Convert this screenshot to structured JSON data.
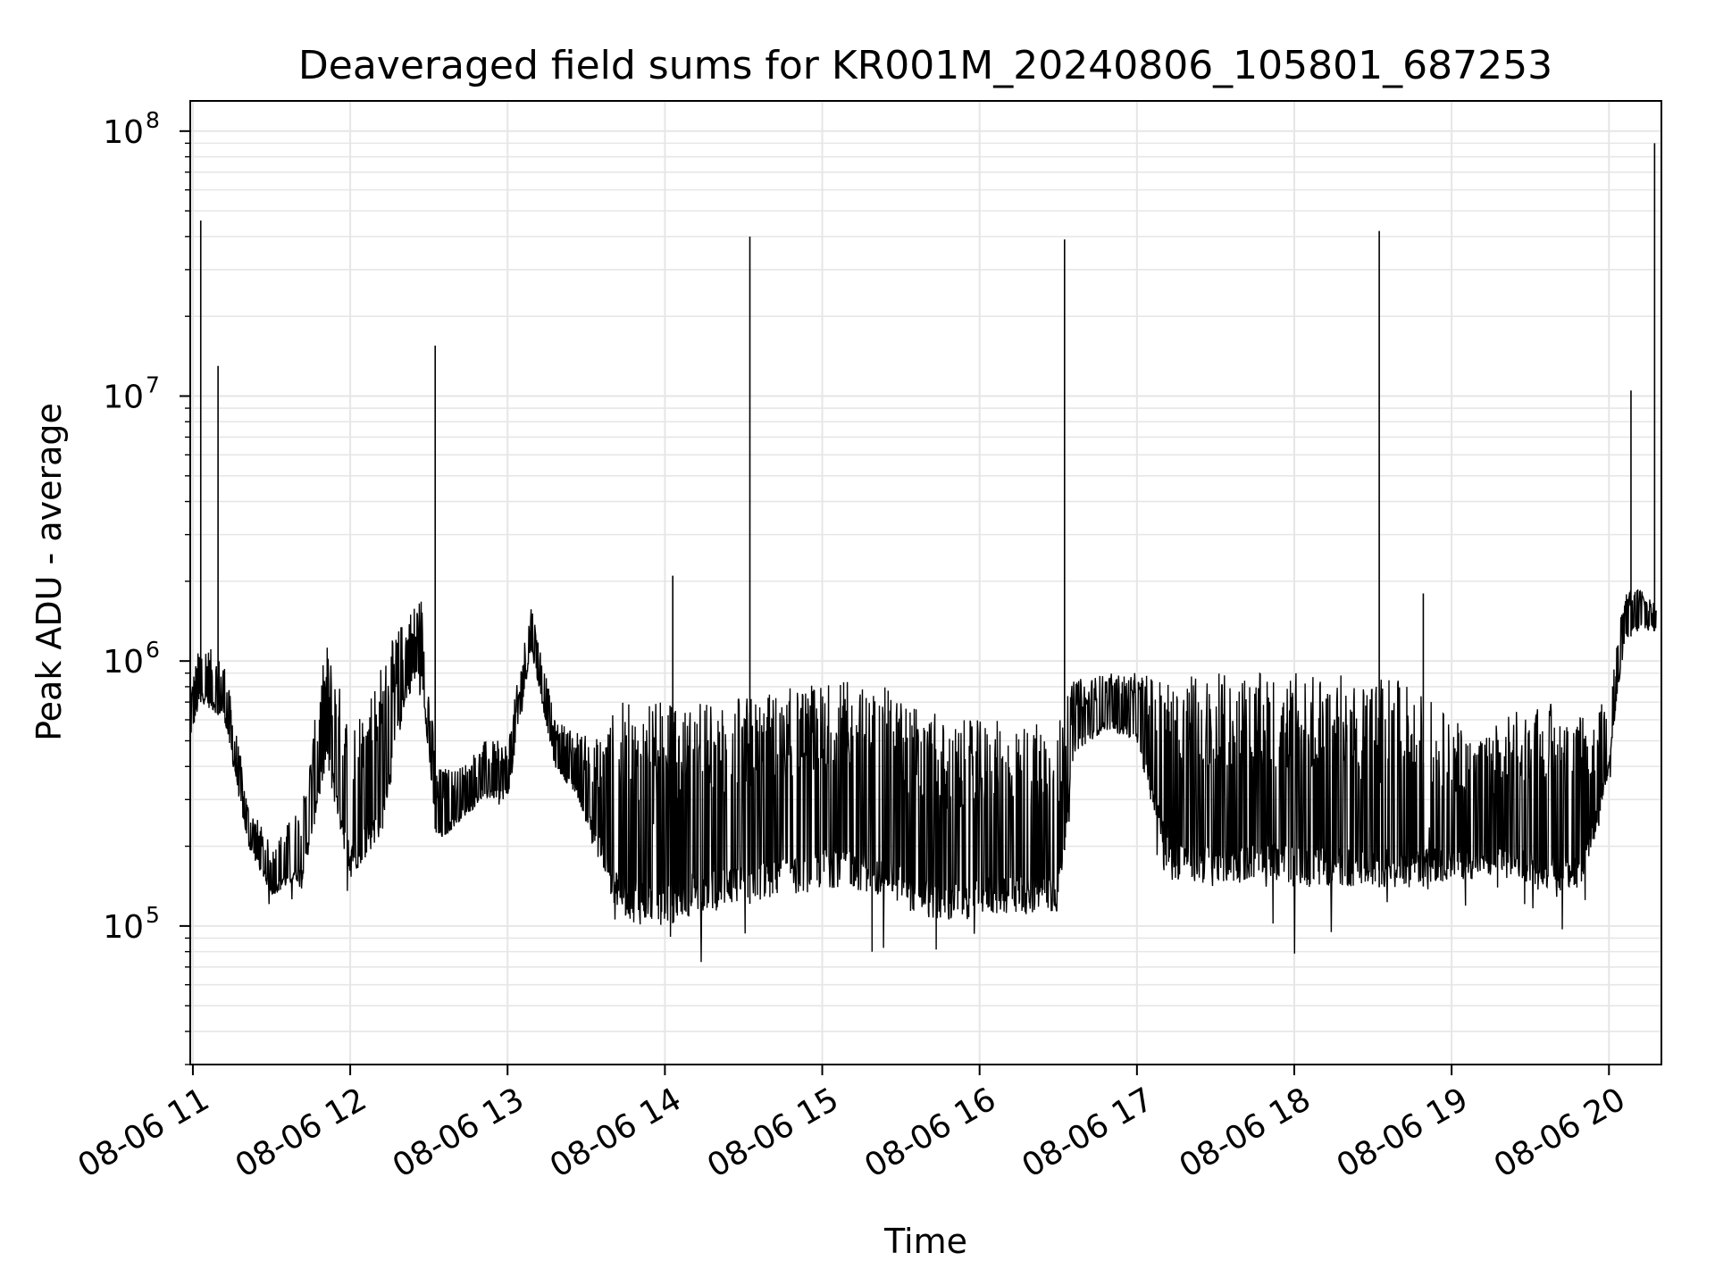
{
  "chart_data": {
    "type": "line",
    "title": "Deaveraged field sums for KR001M_20240806_105801_687253",
    "xlabel": "Time",
    "ylabel": "Peak ADU - average",
    "y_scale": "log",
    "xlim": [
      "08-06 10:59",
      "08-06 20:20"
    ],
    "ylim": [
      30000,
      130000000
    ],
    "grid": true,
    "legend": "none",
    "line_color": "#000000",
    "x_ticks": [
      {
        "label": "08-06 11",
        "hour": 11
      },
      {
        "label": "08-06 12",
        "hour": 12
      },
      {
        "label": "08-06 13",
        "hour": 13
      },
      {
        "label": "08-06 14",
        "hour": 14
      },
      {
        "label": "08-06 15",
        "hour": 15
      },
      {
        "label": "08-06 16",
        "hour": 16
      },
      {
        "label": "08-06 17",
        "hour": 17
      },
      {
        "label": "08-06 18",
        "hour": 18
      },
      {
        "label": "08-06 19",
        "hour": 19
      },
      {
        "label": "08-06 20",
        "hour": 20
      }
    ],
    "y_ticks": [
      {
        "base": "10",
        "exp": "5",
        "value": 100000
      },
      {
        "base": "10",
        "exp": "6",
        "value": 1000000
      },
      {
        "base": "10",
        "exp": "7",
        "value": 10000000
      },
      {
        "base": "10",
        "exp": "8",
        "value": 100000000
      }
    ],
    "envelope": {
      "hours": [
        10.98,
        11.05,
        11.2,
        11.35,
        11.5,
        11.7,
        11.85,
        12.0,
        12.2,
        12.35,
        12.45,
        12.55,
        12.7,
        12.85,
        13.0,
        13.15,
        13.3,
        13.45,
        13.55,
        13.7,
        13.85,
        14.0,
        14.2,
        14.5,
        14.8,
        15.1,
        15.4,
        15.6,
        15.8,
        16.0,
        16.2,
        16.5,
        16.6,
        16.8,
        17.0,
        17.2,
        17.5,
        17.8,
        18.0,
        18.2,
        18.5,
        18.8,
        19.0,
        19.2,
        19.4,
        19.6,
        19.8,
        19.9,
        20.0,
        20.1,
        20.2,
        20.3
      ],
      "lower": [
        500000,
        700000,
        600000,
        200000,
        130000,
        150000,
        400000,
        150000,
        220000,
        700000,
        900000,
        200000,
        250000,
        300000,
        300000,
        1100000,
        400000,
        300000,
        200000,
        110000,
        100000,
        100000,
        110000,
        120000,
        130000,
        140000,
        130000,
        110000,
        100000,
        110000,
        110000,
        110000,
        450000,
        550000,
        500000,
        150000,
        140000,
        150000,
        140000,
        140000,
        140000,
        140000,
        150000,
        150000,
        150000,
        140000,
        130000,
        200000,
        380000,
        1200000,
        1300000,
        1300000
      ],
      "upper": [
        800000,
        1200000,
        1000000,
        300000,
        200000,
        300000,
        1200000,
        600000,
        1000000,
        1500000,
        1800000,
        400000,
        400000,
        500000,
        500000,
        1700000,
        600000,
        550000,
        500000,
        700000,
        700000,
        700000,
        700000,
        750000,
        800000,
        850000,
        800000,
        700000,
        600000,
        600000,
        600000,
        600000,
        850000,
        900000,
        900000,
        900000,
        900000,
        900000,
        900000,
        900000,
        900000,
        800000,
        600000,
        550000,
        650000,
        700000,
        700000,
        600000,
        800000,
        1800000,
        2000000,
        1600000
      ]
    },
    "spikes": [
      {
        "hour": 11.05,
        "value": 46000000
      },
      {
        "hour": 11.16,
        "value": 13000000
      },
      {
        "hour": 12.54,
        "value": 15500000
      },
      {
        "hour": 14.05,
        "value": 2100000
      },
      {
        "hour": 14.54,
        "value": 40000000
      },
      {
        "hour": 16.54,
        "value": 39000000
      },
      {
        "hour": 18.54,
        "value": 42000000
      },
      {
        "hour": 18.82,
        "value": 1800000
      },
      {
        "hour": 20.14,
        "value": 10500000
      },
      {
        "hour": 20.29,
        "value": 90000000
      }
    ]
  }
}
